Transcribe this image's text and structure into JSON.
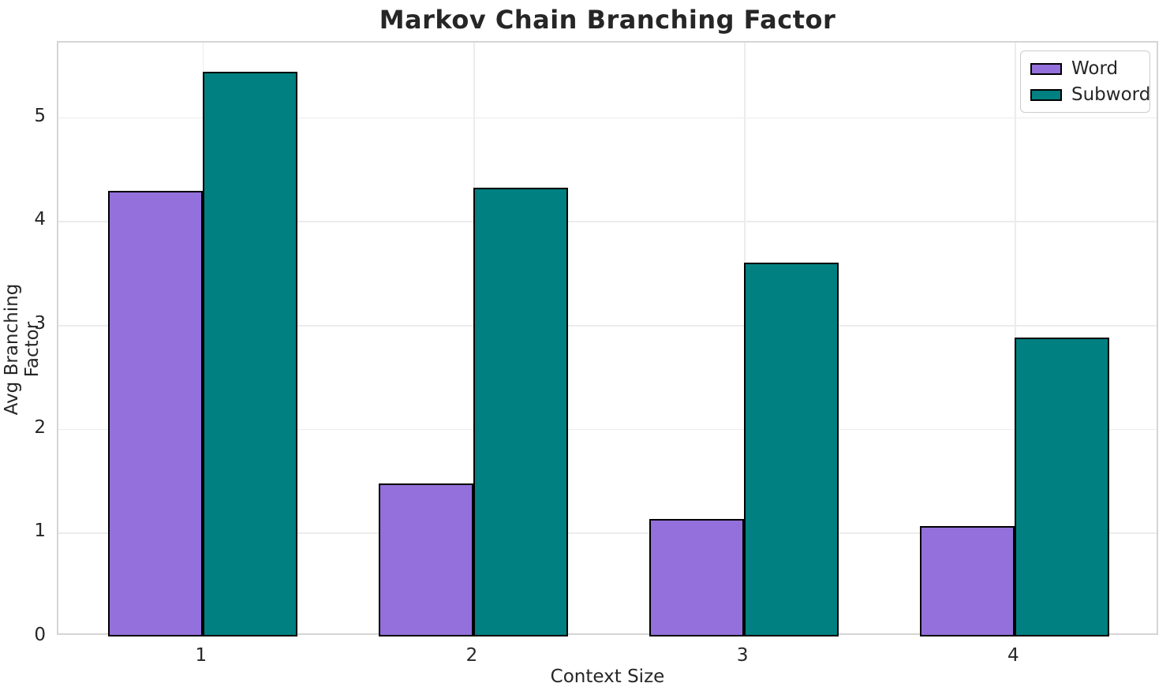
{
  "chart_data": {
    "type": "bar",
    "title": "Markov Chain Branching Factor",
    "xlabel": "Context Size",
    "ylabel": "Avg Branching Factor",
    "categories": [
      "1",
      "2",
      "3",
      "4"
    ],
    "series": [
      {
        "name": "Word",
        "color": "#9370DB",
        "values": [
          4.29,
          1.47,
          1.13,
          1.06
        ]
      },
      {
        "name": "Subword",
        "color": "#008080",
        "values": [
          5.44,
          4.32,
          3.6,
          2.88
        ]
      }
    ],
    "ylim": [
      0,
      5.72
    ],
    "yticks": [
      0,
      1,
      2,
      3,
      4,
      5
    ],
    "grid": true,
    "legend_position": "upper right",
    "bar_edge_color": "#000000"
  },
  "styles": {
    "grid_color": "#ececec",
    "spine_color": "#d5d5d5",
    "text_color": "#262626",
    "background_color": "#ffffff"
  }
}
